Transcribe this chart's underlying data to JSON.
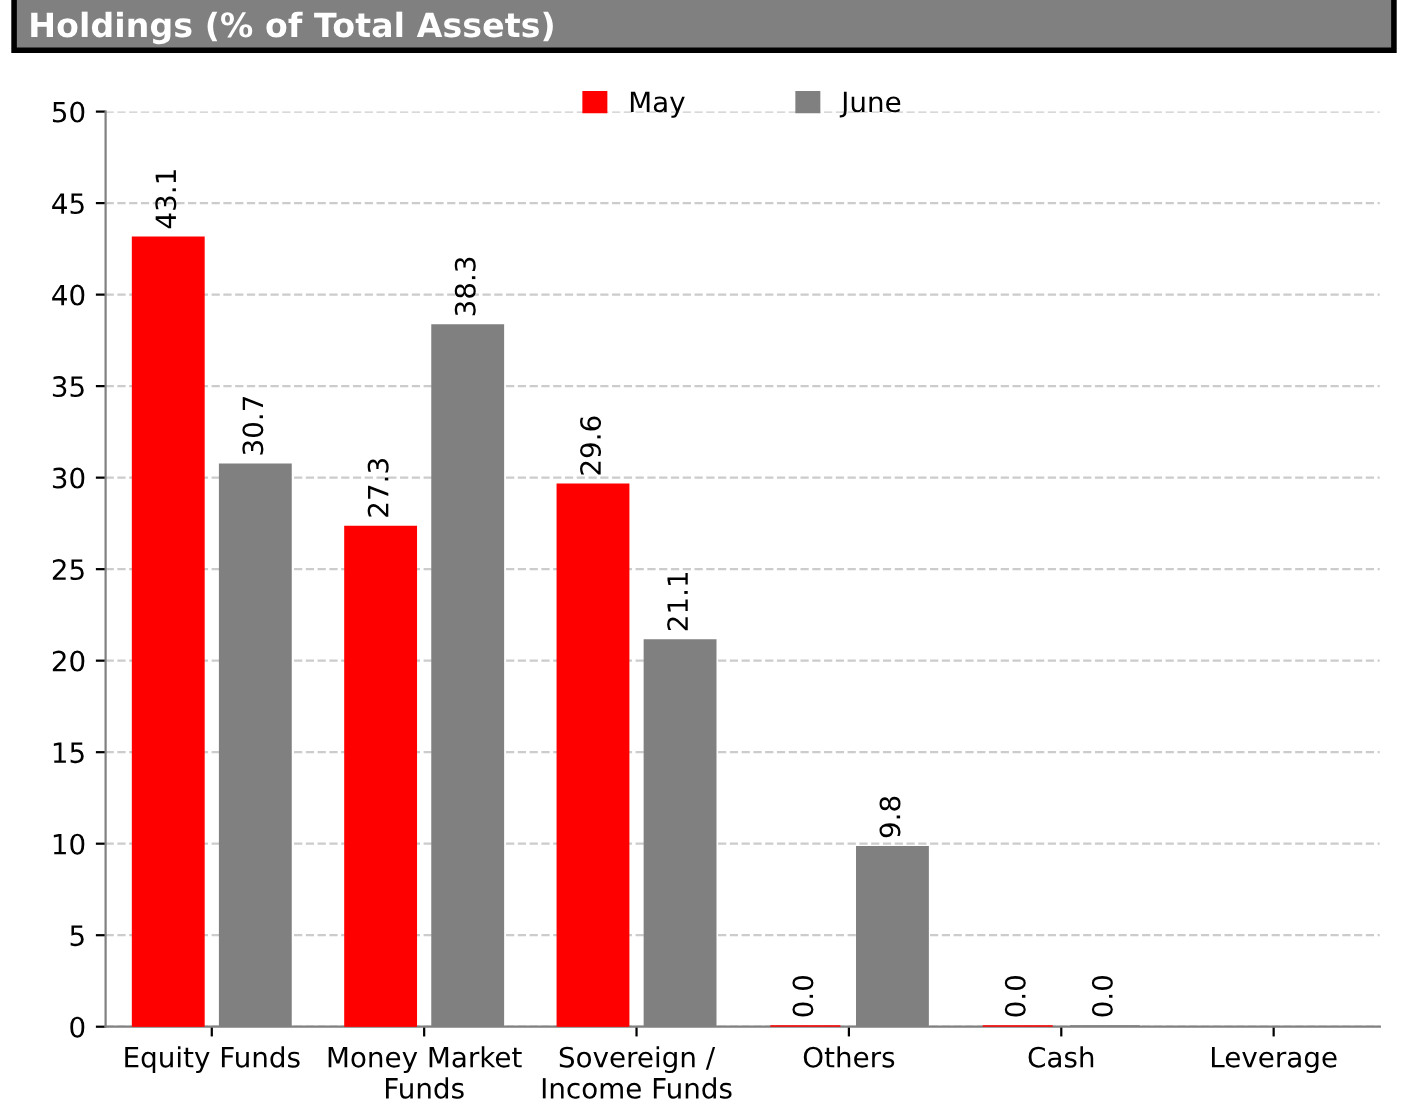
{
  "chart_data": {
    "type": "bar",
    "title": "Holdings (% of Total Assets)",
    "categories": [
      "Equity Funds",
      "Money Market\nFunds",
      "Sovereign /\nIncome Funds",
      "Others",
      "Cash",
      "Leverage"
    ],
    "series": [
      {
        "name": "May",
        "color": "#ff0000",
        "values": [
          43.1,
          27.3,
          29.6,
          0.0,
          0.0,
          null
        ],
        "value_labels": [
          "43.1",
          "27.3",
          "29.6",
          "0.0",
          "0.0",
          null
        ]
      },
      {
        "name": "June",
        "color": "#808080",
        "values": [
          30.7,
          38.3,
          21.1,
          9.8,
          0.0,
          null
        ],
        "value_labels": [
          "30.7",
          "38.3",
          "21.1",
          "9.8",
          "0.0",
          null
        ]
      }
    ],
    "ylim": [
      0,
      50
    ],
    "yticks": [
      0,
      5,
      10,
      15,
      20,
      25,
      30,
      35,
      40,
      45,
      50
    ],
    "grid": "y",
    "legend": "top"
  }
}
